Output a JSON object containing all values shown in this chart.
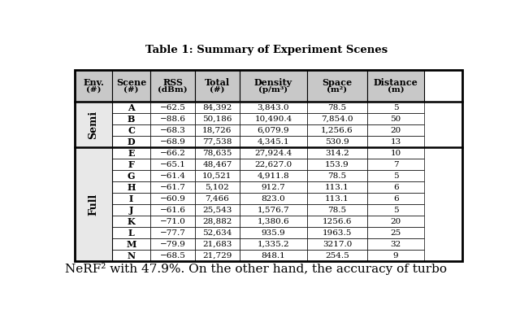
{
  "title": "Table 1: Summary of Experiment Scenes",
  "header_line1": [
    "Env.",
    "Scene",
    "RSS",
    "Total",
    "Density",
    "Space",
    "Distance"
  ],
  "header_line2": [
    "(#)",
    "(#)",
    "(dBm)",
    "(#)",
    "(p/m³)",
    "(m²)",
    "(m)"
  ],
  "env_groups": [
    {
      "label": "Semi",
      "rows": [
        [
          "A",
          "−62.5",
          "84,392",
          "3,843.0",
          "78.5",
          "5"
        ],
        [
          "B",
          "−88.6",
          "50,186",
          "10,490.4",
          "7,854.0",
          "50"
        ],
        [
          "C",
          "−68.3",
          "18,726",
          "6,079.9",
          "1,256.6",
          "20"
        ],
        [
          "D",
          "−68.9",
          "77,538",
          "4,345.1",
          "530.9",
          "13"
        ]
      ]
    },
    {
      "label": "Full",
      "rows": [
        [
          "E",
          "−66.2",
          "78,635",
          "27,924.4",
          "314.2",
          "10"
        ],
        [
          "F",
          "−65.1",
          "48,467",
          "22,627.0",
          "153.9",
          "7"
        ],
        [
          "G",
          "−61.4",
          "10,521",
          "4,911.8",
          "78.5",
          "5"
        ],
        [
          "H",
          "−61.7",
          "5,102",
          "912.7",
          "113.1",
          "6"
        ],
        [
          "I",
          "−60.9",
          "7,466",
          "823.0",
          "113.1",
          "6"
        ],
        [
          "J",
          "−61.6",
          "25,543",
          "1,576.7",
          "78.5",
          "5"
        ],
        [
          "K",
          "−71.0",
          "28,882",
          "1,380.6",
          "1256.6",
          "20"
        ],
        [
          "L",
          "−77.7",
          "52,634",
          "935.9",
          "1963.5",
          "25"
        ],
        [
          "M",
          "−79.9",
          "21,683",
          "1,335.2",
          "3217.0",
          "32"
        ],
        [
          "N",
          "−68.5",
          "21,729",
          "848.1",
          "254.5",
          "9"
        ]
      ]
    }
  ],
  "footer_text": "NeRF² with 47.9%. On the other hand, the accuracy of turbo",
  "bg_color": "#ffffff",
  "text_color": "#000000",
  "header_bg": "#c8c8c8",
  "semi_bg": "#e8e8e8",
  "full_bg": "#e8e8e8"
}
